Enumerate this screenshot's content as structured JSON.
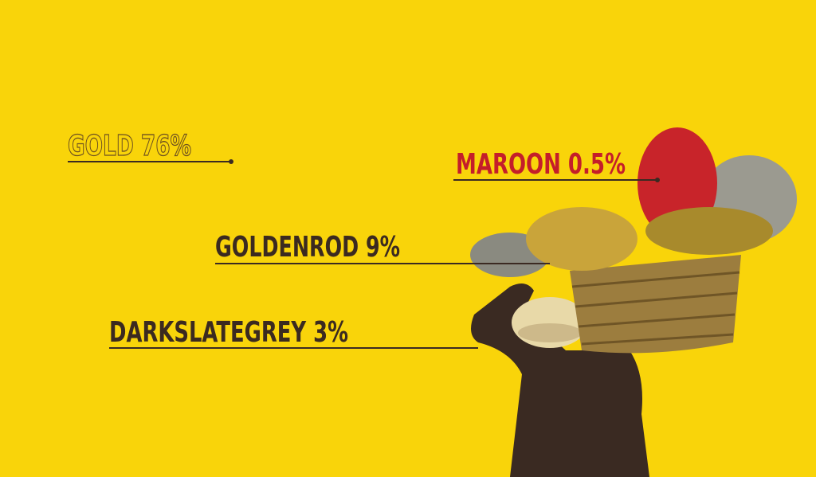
{
  "labels": [
    {
      "text": "GOLD 76%"
    },
    {
      "text": "MAROON 0.5%"
    },
    {
      "text": "GOLDENROD 9%"
    },
    {
      "text": "DARKSLATEGREY 3%"
    }
  ]
}
